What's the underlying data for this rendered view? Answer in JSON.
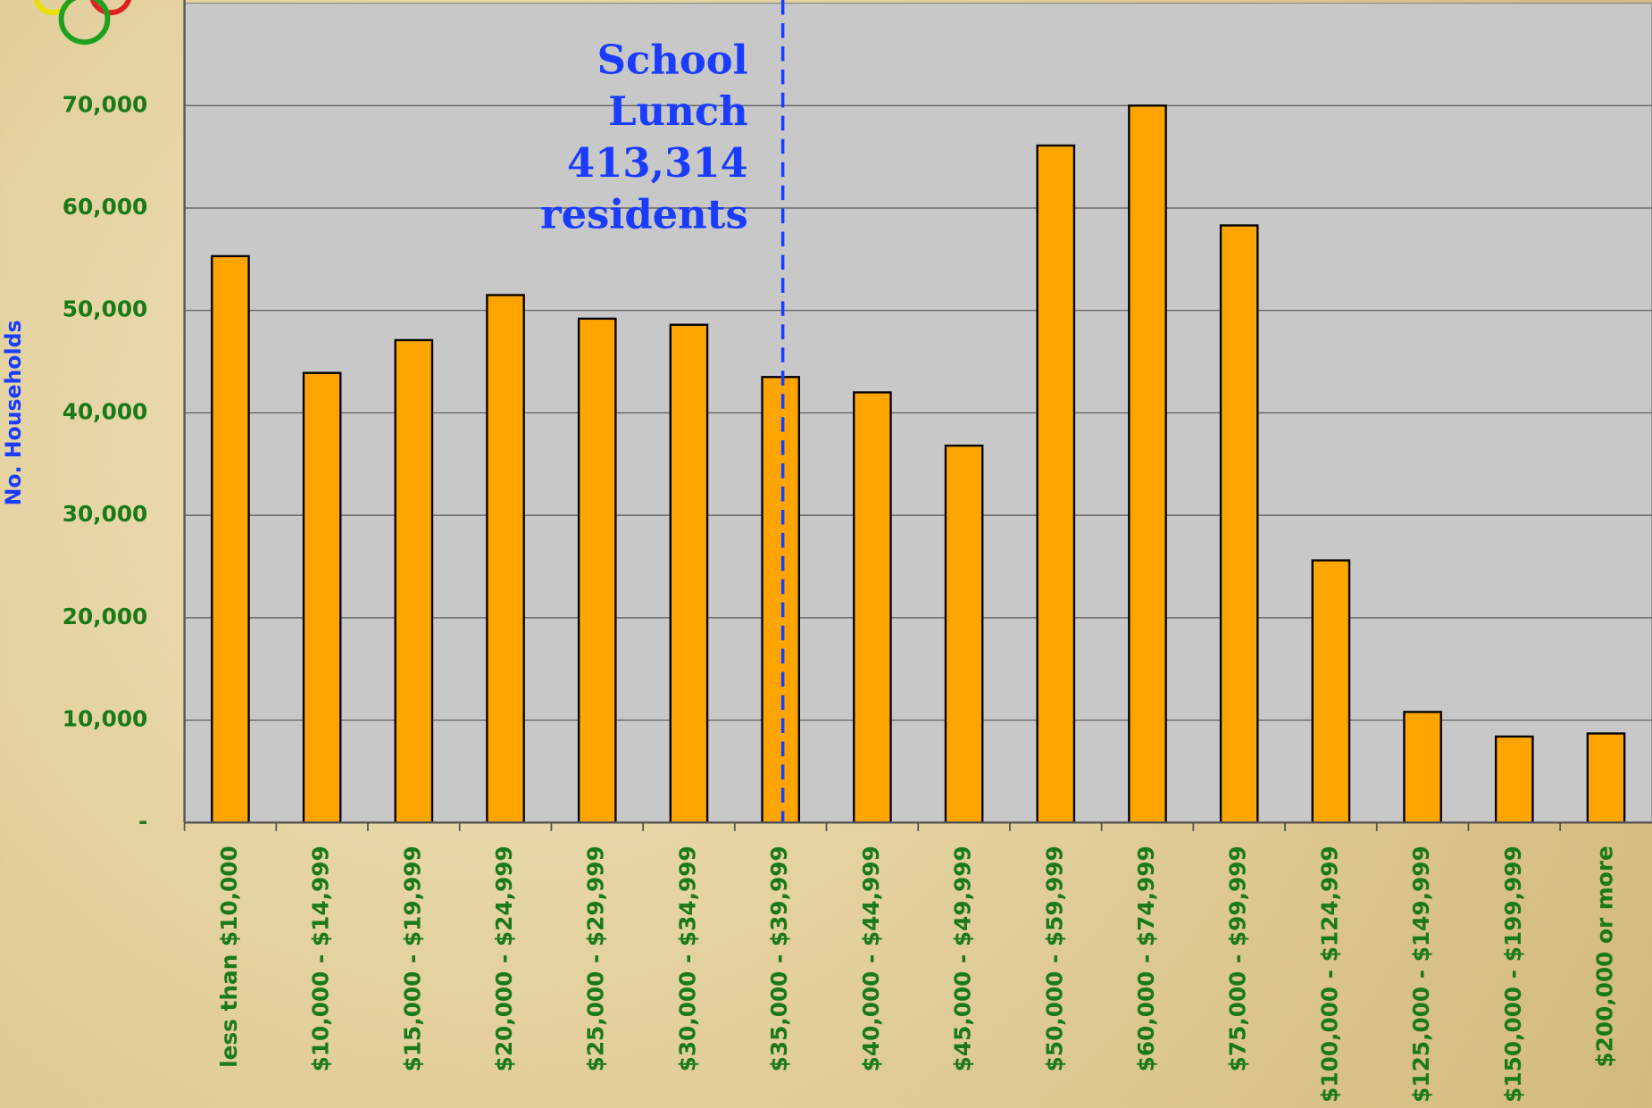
{
  "chart_data": {
    "type": "bar",
    "y_label": "No. Households",
    "annotation": [
      "School",
      "Lunch",
      "413,314",
      "residents"
    ],
    "categories": [
      "less than $10,000",
      "$10,000 - $14,999",
      "$15,000 - $19,999",
      "$20,000 - $24,999",
      "$25,000 - $29,999",
      "$30,000 - $34,999",
      "$35,000 - $39,999",
      "$40,000 - $44,999",
      "$45,000 - $49,999",
      "$50,000 - $59,999",
      "$60,000 - $74,999",
      "$75,000 - $99,999",
      "$100,000 - $124,999",
      "$125,000 - $149,999",
      "$150,000 - $199,999",
      "$200,000 or more"
    ],
    "values": [
      55300,
      43900,
      47100,
      51500,
      49200,
      48600,
      43500,
      42000,
      36800,
      66100,
      70000,
      58300,
      25600,
      10800,
      8400,
      8700
    ],
    "color": "#ffa500",
    "ylim": [
      0,
      80000
    ],
    "yticks": [
      {
        "value": 0,
        "label": "-"
      },
      {
        "value": 10000,
        "label": "10,000"
      },
      {
        "value": 20000,
        "label": "20,000"
      },
      {
        "value": 30000,
        "label": "30,000"
      },
      {
        "value": 40000,
        "label": "40,000"
      },
      {
        "value": 50000,
        "label": "50,000"
      },
      {
        "value": 60000,
        "label": "60,000"
      },
      {
        "value": 70000,
        "label": "70,000"
      }
    ],
    "grid": true
  }
}
